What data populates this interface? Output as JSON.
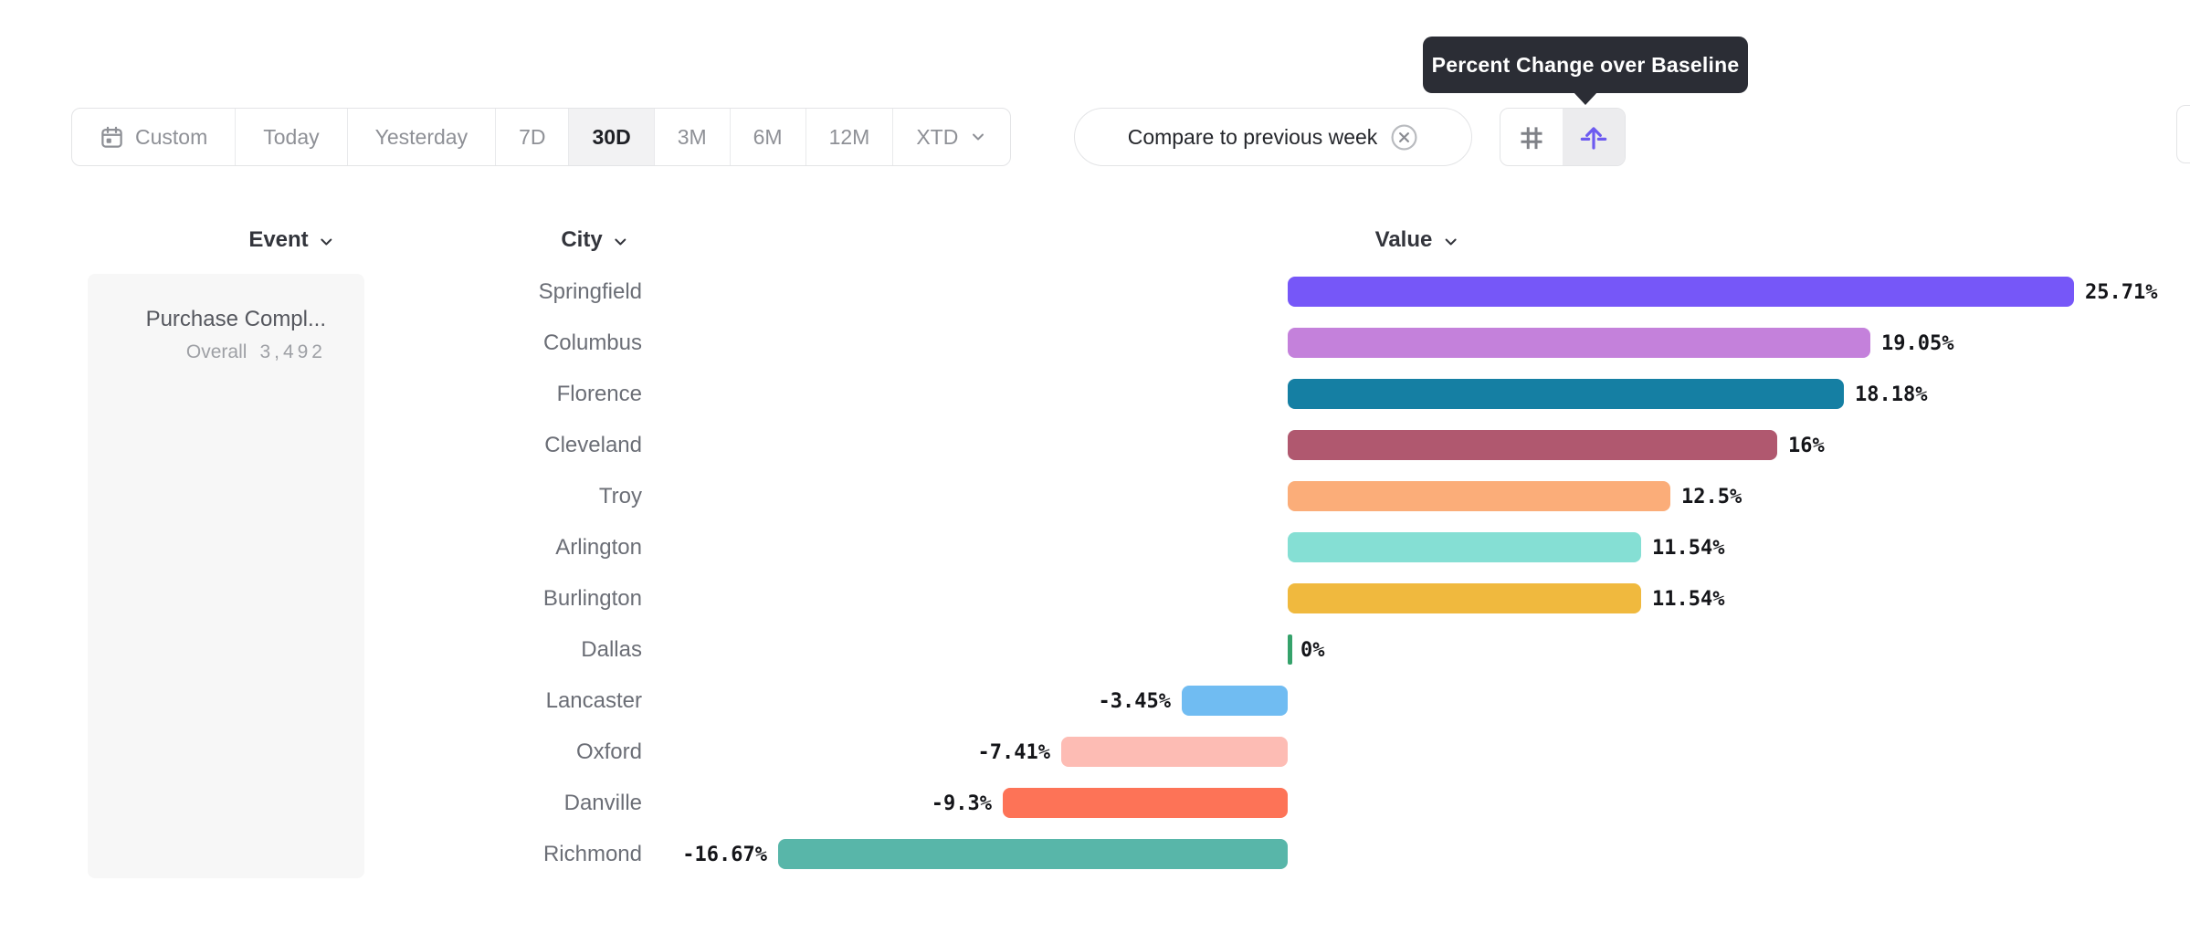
{
  "tooltip": {
    "text": "Percent Change over Baseline"
  },
  "toolbar": {
    "date_ranges": [
      {
        "label": "Custom",
        "icon": "calendar",
        "selected": false,
        "short": false
      },
      {
        "label": "Today",
        "selected": false,
        "short": false
      },
      {
        "label": "Yesterday",
        "selected": false,
        "short": false
      },
      {
        "label": "7D",
        "selected": false,
        "short": true
      },
      {
        "label": "30D",
        "selected": true,
        "short": true
      },
      {
        "label": "3M",
        "selected": false,
        "short": true
      },
      {
        "label": "6M",
        "selected": false,
        "short": true
      },
      {
        "label": "12M",
        "selected": false,
        "short": true
      },
      {
        "label": "XTD",
        "selected": false,
        "short": true,
        "has_chevron": true
      }
    ],
    "compare_chip": {
      "label": "Compare to previous week",
      "close_icon": "circle-x"
    },
    "view_toggle": [
      {
        "name": "numeric-view",
        "icon": "hash",
        "selected": false,
        "color": "#7f8187"
      },
      {
        "name": "percent-change-view",
        "icon": "baseline-arrow",
        "selected": true,
        "color": "#6d5bf0"
      }
    ]
  },
  "table": {
    "columns": [
      {
        "label": "Event"
      },
      {
        "label": "City"
      },
      {
        "label": "Value"
      }
    ],
    "event": {
      "name": "Purchase Compl...",
      "overall_label": "Overall",
      "overall_value": "3,492"
    }
  },
  "chart_data": {
    "type": "bar",
    "orientation": "horizontal",
    "title": "Percent Change over Baseline",
    "xlabel": "Value",
    "ylabel": "City",
    "baseline": 0,
    "xlim": [
      -16.67,
      25.71
    ],
    "categories": [
      "Springfield",
      "Columbus",
      "Florence",
      "Cleveland",
      "Troy",
      "Arlington",
      "Burlington",
      "Dallas",
      "Lancaster",
      "Oxford",
      "Danville",
      "Richmond"
    ],
    "values": [
      25.71,
      19.05,
      18.18,
      16,
      12.5,
      11.54,
      11.54,
      0,
      -3.45,
      -7.41,
      -9.3,
      -16.67
    ],
    "labels": [
      "25.71%",
      "19.05%",
      "18.18%",
      "16%",
      "12.5%",
      "11.54%",
      "11.54%",
      "0%",
      "-3.45%",
      "-7.41%",
      "-9.3%",
      "-16.67%"
    ],
    "colors": [
      "#7657f8",
      "#c481db",
      "#157fa3",
      "#b0586f",
      "#fbad79",
      "#85dfd4",
      "#f0b93e",
      "#35a26b",
      "#70bcf2",
      "#fdbcb4",
      "#fd7357",
      "#58b6a9"
    ]
  }
}
